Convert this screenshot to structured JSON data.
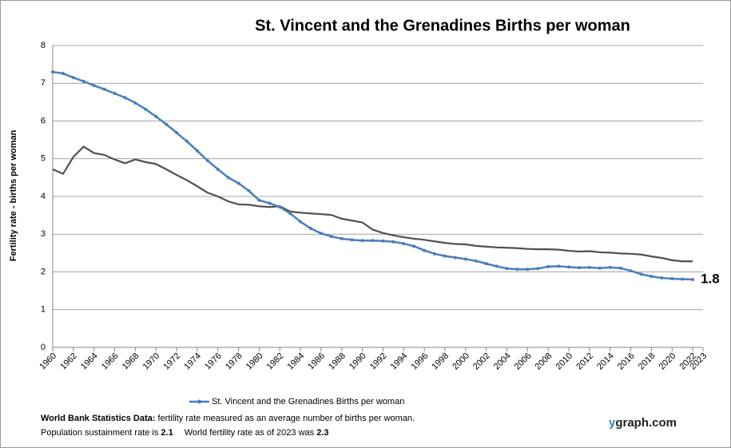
{
  "chart_data": {
    "type": "line",
    "title": "St. Vincent and the Grenadines Births per woman",
    "y_label": "Fertility rate  - births per woman",
    "x": [
      1960,
      1961,
      1962,
      1963,
      1964,
      1965,
      1966,
      1967,
      1968,
      1969,
      1970,
      1971,
      1972,
      1973,
      1974,
      1975,
      1976,
      1977,
      1978,
      1979,
      1980,
      1981,
      1982,
      1983,
      1984,
      1985,
      1986,
      1987,
      1988,
      1989,
      1990,
      1991,
      1992,
      1993,
      1994,
      1995,
      1996,
      1997,
      1998,
      1999,
      2000,
      2001,
      2002,
      2003,
      2004,
      2005,
      2006,
      2007,
      2008,
      2009,
      2010,
      2011,
      2012,
      2013,
      2014,
      2015,
      2016,
      2017,
      2018,
      2019,
      2020,
      2021,
      2022
    ],
    "series": [
      {
        "name": "St. Vincent and the Grenadines Births per woman",
        "color": "#4a7ebb",
        "markers": true,
        "values": [
          7.3,
          7.26,
          7.15,
          7.05,
          6.94,
          6.84,
          6.73,
          6.62,
          6.48,
          6.31,
          6.12,
          5.91,
          5.69,
          5.46,
          5.21,
          4.95,
          4.72,
          4.5,
          4.35,
          4.15,
          3.9,
          3.82,
          3.72,
          3.55,
          3.33,
          3.15,
          3.02,
          2.94,
          2.88,
          2.85,
          2.83,
          2.83,
          2.82,
          2.8,
          2.75,
          2.68,
          2.57,
          2.48,
          2.42,
          2.38,
          2.34,
          2.29,
          2.22,
          2.15,
          2.09,
          2.07,
          2.07,
          2.09,
          2.14,
          2.15,
          2.13,
          2.11,
          2.12,
          2.1,
          2.12,
          2.1,
          2.03,
          1.94,
          1.88,
          1.84,
          1.82,
          1.81,
          1.8
        ]
      },
      {
        "color": "#505050",
        "markers": false,
        "values": [
          4.72,
          4.6,
          5.05,
          5.32,
          5.15,
          5.1,
          4.98,
          4.88,
          4.98,
          4.91,
          4.86,
          4.72,
          4.57,
          4.43,
          4.27,
          4.1,
          4.0,
          3.87,
          3.79,
          3.78,
          3.74,
          3.72,
          3.74,
          3.6,
          3.57,
          3.55,
          3.53,
          3.51,
          3.41,
          3.36,
          3.31,
          3.12,
          3.03,
          2.97,
          2.92,
          2.88,
          2.85,
          2.81,
          2.77,
          2.74,
          2.73,
          2.69,
          2.67,
          2.65,
          2.64,
          2.63,
          2.61,
          2.6,
          2.6,
          2.59,
          2.56,
          2.54,
          2.55,
          2.52,
          2.51,
          2.49,
          2.48,
          2.46,
          2.41,
          2.37,
          2.31,
          2.28,
          2.28
        ]
      }
    ],
    "xlim": [
      1960,
      2023
    ],
    "xticks": [
      1960,
      1962,
      1964,
      1966,
      1968,
      1970,
      1972,
      1974,
      1976,
      1978,
      1980,
      1982,
      1984,
      1986,
      1988,
      1990,
      1992,
      1994,
      1996,
      1998,
      2000,
      2002,
      2004,
      2006,
      2008,
      2010,
      2012,
      2014,
      2016,
      2018,
      2020,
      2022,
      2023
    ],
    "ylim": [
      0,
      8
    ],
    "yticks": [
      0,
      1,
      2,
      3,
      4,
      5,
      6,
      7,
      8
    ],
    "grid": true,
    "end_label_series": 0,
    "footer": {
      "line1_bold": "World Bank Statistics Data:",
      "line1_rest": " fertility rate measured as an average number of births per woman.",
      "line2_a": "Population sustainment rate is ",
      "line2_b": "2.1",
      "line2_c": "World fertility rate as of 2023 was ",
      "line2_d": "2.3",
      "brand_prefix": "y",
      "brand_rest": "graph.com"
    }
  }
}
